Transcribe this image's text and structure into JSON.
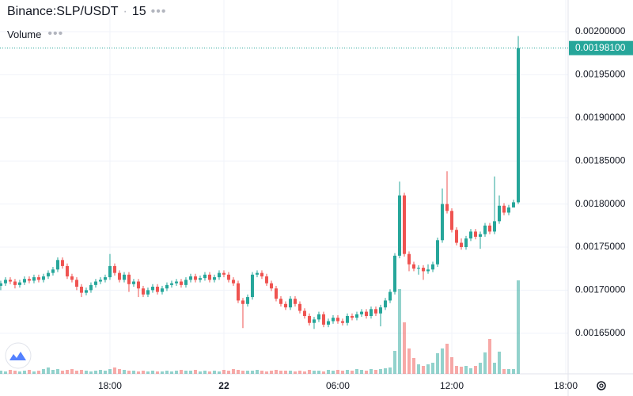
{
  "chart_data": {
    "type": "candlestick",
    "title": "Binance:SLP/USDT",
    "interval": "15",
    "volume_label": "Volume",
    "x": [
      -11.75,
      -11.5,
      -11.25,
      -11,
      -10.75,
      -10.5,
      -10.25,
      -10,
      -9.75,
      -9.5,
      -9.25,
      -9,
      -8.75,
      -8.5,
      -8.25,
      -8,
      -7.75,
      -7.5,
      -7.25,
      -7,
      -6.75,
      -6.5,
      -6.25,
      -6,
      -5.75,
      -5.5,
      -5.25,
      -5,
      -4.75,
      -4.5,
      -4.25,
      -4,
      -3.75,
      -3.5,
      -3.25,
      -3,
      -2.75,
      -2.5,
      -2.25,
      -2,
      -1.75,
      -1.5,
      -1.25,
      -1,
      -0.75,
      -0.5,
      -0.25,
      0,
      0.25,
      0.5,
      0.75,
      1,
      1.25,
      1.5,
      1.75,
      2,
      2.25,
      2.5,
      2.75,
      3,
      3.25,
      3.5,
      3.75,
      4,
      4.25,
      4.5,
      4.75,
      5,
      5.25,
      5.5,
      5.75,
      6,
      6.25,
      6.5,
      6.75,
      7,
      7.25,
      7.5,
      7.75,
      8,
      8.25,
      8.5,
      8.75,
      9,
      9.25,
      9.5,
      9.75,
      10,
      10.25,
      10.5,
      10.75,
      11,
      11.25,
      11.5,
      11.75,
      12,
      12.25,
      12.5,
      12.75,
      13,
      13.25,
      13.5,
      13.75,
      14,
      14.25,
      14.5,
      14.75,
      15,
      15.25,
      15.5
    ],
    "open": [
      0.001705,
      0.001708,
      0.001712,
      0.00171,
      0.001706,
      0.001709,
      0.001713,
      0.001711,
      0.001715,
      0.001712,
      0.001716,
      0.00172,
      0.001724,
      0.001735,
      0.001728,
      0.001716,
      0.001712,
      0.001704,
      0.001697,
      0.0017,
      0.001706,
      0.00171,
      0.001712,
      0.001715,
      0.001728,
      0.00172,
      0.001712,
      0.001718,
      0.001707,
      0.00171,
      0.001702,
      0.001695,
      0.0017,
      0.001704,
      0.001698,
      0.001702,
      0.001706,
      0.001708,
      0.00171,
      0.001706,
      0.001712,
      0.001716,
      0.001712,
      0.001714,
      0.001718,
      0.001712,
      0.001715,
      0.00172,
      0.001718,
      0.001712,
      0.001708,
      0.001688,
      0.001684,
      0.001692,
      0.001718,
      0.00172,
      0.001716,
      0.001708,
      0.001702,
      0.00169,
      0.001684,
      0.00168,
      0.00169,
      0.001684,
      0.001676,
      0.00167,
      0.001662,
      0.001666,
      0.001672,
      0.00166,
      0.001664,
      0.001668,
      0.001664,
      0.001662,
      0.00167,
      0.001668,
      0.001672,
      0.001675,
      0.00167,
      0.001678,
      0.001673,
      0.00168,
      0.001688,
      0.001698,
      0.00174,
      0.00181,
      0.001742,
      0.00173,
      0.001725,
      0.001726,
      0.001722,
      0.001724,
      0.00173,
      0.001758,
      0.0018,
      0.001792,
      0.00177,
      0.001755,
      0.00175,
      0.00176,
      0.001768,
      0.001762,
      0.001765,
      0.001775,
      0.001768,
      0.00178,
      0.001798,
      0.00179,
      0.001796,
      0.001802
    ],
    "close": [
      0.001708,
      0.001712,
      0.00171,
      0.001706,
      0.001709,
      0.001713,
      0.001711,
      0.001715,
      0.001712,
      0.001716,
      0.00172,
      0.001724,
      0.001735,
      0.001728,
      0.001716,
      0.001712,
      0.001704,
      0.001697,
      0.0017,
      0.001706,
      0.00171,
      0.001712,
      0.001715,
      0.001728,
      0.00172,
      0.001712,
      0.001718,
      0.001707,
      0.00171,
      0.001702,
      0.001695,
      0.0017,
      0.001704,
      0.001698,
      0.001702,
      0.001706,
      0.001708,
      0.00171,
      0.001706,
      0.001712,
      0.001716,
      0.001712,
      0.001714,
      0.001718,
      0.001712,
      0.001715,
      0.00172,
      0.001718,
      0.001712,
      0.001708,
      0.001688,
      0.001684,
      0.001692,
      0.001718,
      0.00172,
      0.001716,
      0.001708,
      0.001702,
      0.00169,
      0.001684,
      0.00168,
      0.00169,
      0.001684,
      0.001676,
      0.00167,
      0.001662,
      0.001666,
      0.001672,
      0.00166,
      0.001664,
      0.001668,
      0.001664,
      0.001662,
      0.00167,
      0.001668,
      0.001672,
      0.001675,
      0.00167,
      0.001678,
      0.001673,
      0.00168,
      0.001688,
      0.001698,
      0.00174,
      0.00181,
      0.001742,
      0.00173,
      0.001725,
      0.001726,
      0.001722,
      0.001724,
      0.00173,
      0.001758,
      0.0018,
      0.001792,
      0.00177,
      0.001755,
      0.00175,
      0.00176,
      0.001768,
      0.001762,
      0.001765,
      0.001775,
      0.001768,
      0.00178,
      0.001798,
      0.00179,
      0.001796,
      0.001802,
      0.001981
    ],
    "high": [
      0.001711,
      0.001715,
      0.001715,
      0.001713,
      0.001712,
      0.001716,
      0.001716,
      0.001718,
      0.001718,
      0.001719,
      0.001723,
      0.001727,
      0.001738,
      0.001738,
      0.001731,
      0.001719,
      0.001715,
      0.001707,
      0.001703,
      0.001709,
      0.001713,
      0.001715,
      0.001718,
      0.001742,
      0.001731,
      0.001723,
      0.001721,
      0.001721,
      0.001713,
      0.001713,
      0.001705,
      0.001703,
      0.001707,
      0.001707,
      0.001705,
      0.001709,
      0.001711,
      0.001713,
      0.001713,
      0.001715,
      0.001719,
      0.001719,
      0.001717,
      0.001721,
      0.001721,
      0.001718,
      0.001723,
      0.001723,
      0.001721,
      0.001715,
      0.001711,
      0.001691,
      0.001695,
      0.001721,
      0.001723,
      0.001723,
      0.001719,
      0.001711,
      0.001705,
      0.001693,
      0.001687,
      0.001693,
      0.001693,
      0.001687,
      0.001679,
      0.001673,
      0.001669,
      0.001675,
      0.001675,
      0.001667,
      0.001671,
      0.001671,
      0.001667,
      0.001673,
      0.001673,
      0.001675,
      0.001678,
      0.001678,
      0.001681,
      0.001681,
      0.001683,
      0.001691,
      0.001701,
      0.001743,
      0.001826,
      0.001813,
      0.001745,
      0.001733,
      0.001729,
      0.001729,
      0.00173,
      0.001733,
      0.001761,
      0.001818,
      0.001838,
      0.001795,
      0.001773,
      0.00176,
      0.001763,
      0.001771,
      0.001771,
      0.001768,
      0.001778,
      0.001778,
      0.001832,
      0.00181,
      0.001801,
      0.001799,
      0.001805,
      0.001995
    ],
    "low": [
      0.0017,
      0.001705,
      0.001707,
      0.001702,
      0.001703,
      0.001706,
      0.001708,
      0.001708,
      0.001709,
      0.001709,
      0.001713,
      0.001717,
      0.001721,
      0.001725,
      0.001713,
      0.001709,
      0.0017,
      0.001692,
      0.001694,
      0.001697,
      0.001703,
      0.001707,
      0.001709,
      0.001712,
      0.001717,
      0.001709,
      0.001709,
      0.001698,
      0.001704,
      0.001692,
      0.001692,
      0.001692,
      0.001697,
      0.001695,
      0.001695,
      0.001699,
      0.001703,
      0.001705,
      0.001703,
      0.001703,
      0.001709,
      0.001709,
      0.001709,
      0.001711,
      0.001709,
      0.001709,
      0.001712,
      0.001715,
      0.001709,
      0.001705,
      0.001685,
      0.001656,
      0.001681,
      0.001689,
      0.001715,
      0.001713,
      0.001705,
      0.001699,
      0.001687,
      0.001681,
      0.001677,
      0.001677,
      0.001681,
      0.001673,
      0.001667,
      0.001659,
      0.001655,
      0.001663,
      0.001657,
      0.001657,
      0.001661,
      0.001661,
      0.001659,
      0.001659,
      0.001665,
      0.001665,
      0.001669,
      0.001667,
      0.001667,
      0.00167,
      0.001658,
      0.001677,
      0.001685,
      0.001695,
      0.001737,
      0.001739,
      0.001722,
      0.001722,
      0.001718,
      0.001712,
      0.001719,
      0.001721,
      0.001727,
      0.001755,
      0.001789,
      0.001767,
      0.001752,
      0.001747,
      0.001747,
      0.001757,
      0.001759,
      0.001748,
      0.001762,
      0.001765,
      0.001765,
      0.001777,
      0.001787,
      0.001787,
      0.001799,
      0.0018
    ],
    "volume": [
      4,
      3,
      5,
      4,
      3,
      4,
      5,
      3,
      4,
      6,
      8,
      5,
      6,
      4,
      5,
      6,
      4,
      5,
      4,
      3,
      4,
      5,
      4,
      6,
      8,
      6,
      5,
      4,
      4,
      3,
      4,
      3,
      4,
      3,
      3,
      4,
      3,
      4,
      5,
      4,
      4,
      5,
      3,
      4,
      3,
      4,
      3,
      5,
      4,
      6,
      5,
      4,
      4,
      4,
      5,
      4,
      3,
      4,
      5,
      4,
      4,
      4,
      3,
      4,
      3,
      5,
      4,
      4,
      3,
      5,
      4,
      5,
      4,
      5,
      4,
      6,
      5,
      4,
      6,
      5,
      6,
      7,
      8,
      29,
      107,
      65,
      32,
      20,
      12,
      10,
      12,
      14,
      26,
      32,
      38,
      21,
      10,
      9,
      10,
      7,
      10,
      14,
      27,
      44,
      14,
      28,
      6,
      6,
      6,
      118
    ],
    "up_color": "#26a69a",
    "down_color": "#ef5350",
    "last_price": {
      "value": 0.001981,
      "label": "0.00198100"
    },
    "xlim": [
      -11.79,
      18.125
    ],
    "xticks": [
      {
        "value": -6,
        "label": "18:00"
      },
      {
        "value": 0,
        "label": "22"
      },
      {
        "value": 6,
        "label": "06:00"
      },
      {
        "value": 12,
        "label": "12:00"
      },
      {
        "value": 18,
        "label": "18:00"
      }
    ],
    "ylim": [
      0.0016029,
      0.0020368
    ],
    "yticks": [
      {
        "value": 0.002,
        "label": "0.00200000"
      },
      {
        "value": 0.00195,
        "label": "0.00195000"
      },
      {
        "value": 0.0019,
        "label": "0.00190000"
      },
      {
        "value": 0.00185,
        "label": "0.00185000"
      },
      {
        "value": 0.0018,
        "label": "0.00180000"
      },
      {
        "value": 0.00175,
        "label": "0.00175000"
      },
      {
        "value": 0.0017,
        "label": "0.00170000"
      },
      {
        "value": 0.00165,
        "label": "0.00165000"
      }
    ],
    "grid": true
  }
}
